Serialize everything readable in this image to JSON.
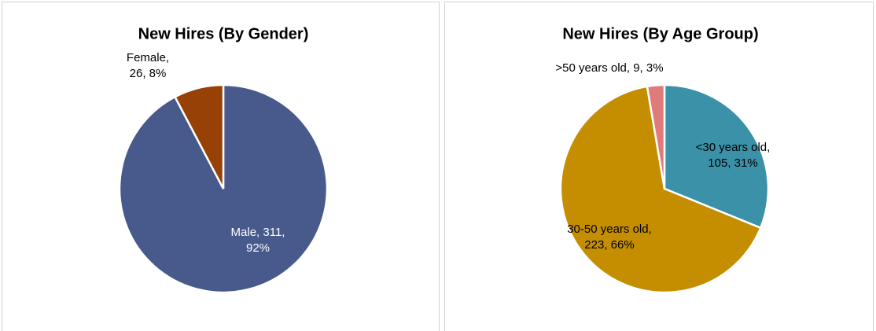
{
  "chart_data": [
    {
      "type": "pie",
      "title": "New Hires (By Gender)",
      "values": [
        311,
        26
      ],
      "value_labels": [
        [
          "Male, 311,",
          "92%"
        ],
        [
          "Female,",
          "26, 8%"
        ]
      ],
      "colors": [
        "#475a8b",
        "#974106"
      ]
    },
    {
      "type": "pie",
      "title": "New Hires (By Age Group)",
      "values": [
        105,
        223,
        9
      ],
      "value_labels": [
        [
          "<30 years old,",
          "105, 31%"
        ],
        [
          "30-50 years old,",
          "223, 66%"
        ],
        [
          ">50 years old, 9, 3%"
        ]
      ],
      "colors": [
        "#3a91a8",
        "#c48e00",
        "#e07b7b"
      ]
    }
  ]
}
